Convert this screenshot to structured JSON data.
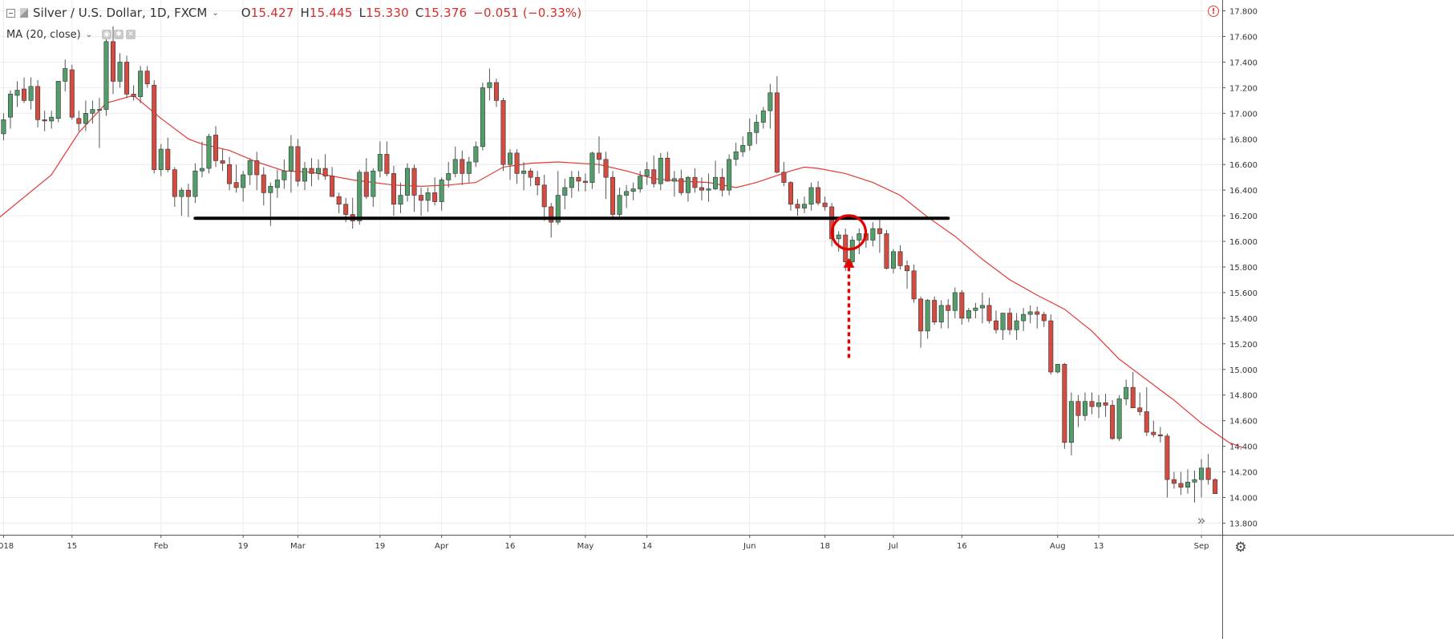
{
  "header": {
    "symbol": "Silver / U.S. Dollar, 1D, FXCM",
    "caret": "⌄",
    "ohlc": {
      "open_label": "O",
      "open": "15.427",
      "high_label": "H",
      "high": "15.445",
      "low_label": "L",
      "low": "15.330",
      "close_label": "C",
      "close": "15.376",
      "change": "−0.051 (−0.33%)"
    },
    "indicator": "MA (20, close)"
  },
  "icons": {
    "collapse": "collapse-square-icon",
    "symbol": "symbol-flag-icon",
    "eye": "eye-icon",
    "settings_small": "settings-icon",
    "close": "close-icon",
    "alert": "alert-circle-icon",
    "scroll": "scroll-right-icon",
    "gear": "gear-icon"
  },
  "alert_glyph": "!",
  "scroll_glyph": "»",
  "gear_glyph": "⚙",
  "colors": {
    "up": "#539d6b",
    "down": "#d24c41",
    "ma": "#e53935",
    "support": "#000000",
    "marker": "#e50000",
    "grid": "#ececec"
  },
  "chart_data": {
    "type": "candlestick",
    "instrument": "Silver / U.S. Dollar",
    "interval": "1D",
    "source": "FXCM",
    "ylim": [
      13.7,
      17.87
    ],
    "y_ticks": [
      "13.800",
      "14.000",
      "14.200",
      "14.400",
      "14.600",
      "14.800",
      "15.000",
      "15.200",
      "15.400",
      "15.600",
      "15.800",
      "16.000",
      "16.200",
      "16.400",
      "16.600",
      "16.800",
      "17.000",
      "17.200",
      "17.400",
      "17.600",
      "17.800"
    ],
    "x_ticks": [
      {
        "label": "2018",
        "bar": 1
      },
      {
        "label": "15",
        "bar": 11
      },
      {
        "label": "Feb",
        "bar": 24
      },
      {
        "label": "19",
        "bar": 36
      },
      {
        "label": "Mar",
        "bar": 44
      },
      {
        "label": "19",
        "bar": 56
      },
      {
        "label": "Apr",
        "bar": 65
      },
      {
        "label": "16",
        "bar": 75
      },
      {
        "label": "May",
        "bar": 86
      },
      {
        "label": "14",
        "bar": 95
      },
      {
        "label": "Jun",
        "bar": 110
      },
      {
        "label": "18",
        "bar": 121
      },
      {
        "label": "Jul",
        "bar": 131
      },
      {
        "label": "16",
        "bar": 141
      },
      {
        "label": "Aug",
        "bar": 155
      },
      {
        "label": "13",
        "bar": 161
      },
      {
        "label": "Sep",
        "bar": 176
      }
    ],
    "candles": [
      [
        16.72,
        16.85,
        16.63,
        16.82
      ],
      [
        16.84,
        17.0,
        16.79,
        16.95
      ],
      [
        16.97,
        17.18,
        16.88,
        17.15
      ],
      [
        17.14,
        17.25,
        17.05,
        17.18
      ],
      [
        17.19,
        17.28,
        17.08,
        17.1
      ],
      [
        17.1,
        17.28,
        17.03,
        17.21
      ],
      [
        17.21,
        17.26,
        16.89,
        16.95
      ],
      [
        16.95,
        17.02,
        16.86,
        16.94
      ],
      [
        16.94,
        17.02,
        16.88,
        16.97
      ],
      [
        16.96,
        17.25,
        16.93,
        17.25
      ],
      [
        17.25,
        17.42,
        17.17,
        17.35
      ],
      [
        17.34,
        17.38,
        16.95,
        16.97
      ],
      [
        16.96,
        17.02,
        16.86,
        16.92
      ],
      [
        16.92,
        17.1,
        16.86,
        17.0
      ],
      [
        17.0,
        17.1,
        16.92,
        17.03
      ],
      [
        17.03,
        17.12,
        16.73,
        17.03
      ],
      [
        17.03,
        17.62,
        16.98,
        17.56
      ],
      [
        17.56,
        17.68,
        17.15,
        17.25
      ],
      [
        17.25,
        17.47,
        17.2,
        17.4
      ],
      [
        17.4,
        17.45,
        17.12,
        17.15
      ],
      [
        17.15,
        17.22,
        17.1,
        17.13
      ],
      [
        17.13,
        17.37,
        17.08,
        17.33
      ],
      [
        17.33,
        17.37,
        17.2,
        17.23
      ],
      [
        17.22,
        17.26,
        16.53,
        16.56
      ],
      [
        16.56,
        16.76,
        16.51,
        16.72
      ],
      [
        16.72,
        16.81,
        16.54,
        16.56
      ],
      [
        16.56,
        16.58,
        16.27,
        16.35
      ],
      [
        16.35,
        16.42,
        16.2,
        16.4
      ],
      [
        16.4,
        16.45,
        16.19,
        16.35
      ],
      [
        16.35,
        16.61,
        16.3,
        16.55
      ],
      [
        16.55,
        16.78,
        16.5,
        16.57
      ],
      [
        16.57,
        16.84,
        16.53,
        16.82
      ],
      [
        16.83,
        16.9,
        16.58,
        16.63
      ],
      [
        16.63,
        16.72,
        16.55,
        16.61
      ],
      [
        16.6,
        16.66,
        16.4,
        16.45
      ],
      [
        16.46,
        16.6,
        16.38,
        16.42
      ],
      [
        16.42,
        16.55,
        16.31,
        16.52
      ],
      [
        16.52,
        16.65,
        16.44,
        16.63
      ],
      [
        16.63,
        16.7,
        16.4,
        16.52
      ],
      [
        16.52,
        16.58,
        16.28,
        16.38
      ],
      [
        16.38,
        16.46,
        16.12,
        16.43
      ],
      [
        16.42,
        16.56,
        16.34,
        16.48
      ],
      [
        16.48,
        16.64,
        16.41,
        16.55
      ],
      [
        16.55,
        16.83,
        16.38,
        16.74
      ],
      [
        16.74,
        16.8,
        16.43,
        16.47
      ],
      [
        16.47,
        16.62,
        16.4,
        16.57
      ],
      [
        16.57,
        16.65,
        16.43,
        16.53
      ],
      [
        16.53,
        16.64,
        16.48,
        16.57
      ],
      [
        16.57,
        16.68,
        16.48,
        16.51
      ],
      [
        16.51,
        16.58,
        16.39,
        16.35
      ],
      [
        16.35,
        16.38,
        16.22,
        16.29
      ],
      [
        16.29,
        16.34,
        16.15,
        16.21
      ],
      [
        16.21,
        16.34,
        16.1,
        16.16
      ],
      [
        16.16,
        16.56,
        16.13,
        16.54
      ],
      [
        16.54,
        16.65,
        16.33,
        16.35
      ],
      [
        16.35,
        16.57,
        16.27,
        16.55
      ],
      [
        16.55,
        16.78,
        16.5,
        16.68
      ],
      [
        16.68,
        16.78,
        16.51,
        16.53
      ],
      [
        16.53,
        16.59,
        16.2,
        16.29
      ],
      [
        16.29,
        16.46,
        16.22,
        16.36
      ],
      [
        16.36,
        16.61,
        16.31,
        16.57
      ],
      [
        16.57,
        16.6,
        16.23,
        16.36
      ],
      [
        16.36,
        16.42,
        16.2,
        16.32
      ],
      [
        16.32,
        16.42,
        16.23,
        16.38
      ],
      [
        16.38,
        16.5,
        16.28,
        16.31
      ],
      [
        16.31,
        16.5,
        16.24,
        16.48
      ],
      [
        16.48,
        16.62,
        16.42,
        16.53
      ],
      [
        16.53,
        16.74,
        16.5,
        16.64
      ],
      [
        16.64,
        16.71,
        16.44,
        16.53
      ],
      [
        16.53,
        16.66,
        16.46,
        16.62
      ],
      [
        16.62,
        16.78,
        16.58,
        16.74
      ],
      [
        16.74,
        17.24,
        16.71,
        17.2
      ],
      [
        17.2,
        17.35,
        17.1,
        17.24
      ],
      [
        17.24,
        17.27,
        17.05,
        17.1
      ],
      [
        17.1,
        17.12,
        16.55,
        16.6
      ],
      [
        16.6,
        16.72,
        16.48,
        16.69
      ],
      [
        16.69,
        16.72,
        16.45,
        16.53
      ],
      [
        16.53,
        16.62,
        16.4,
        16.55
      ],
      [
        16.55,
        16.57,
        16.43,
        16.5
      ],
      [
        16.5,
        16.55,
        16.36,
        16.44
      ],
      [
        16.44,
        16.52,
        16.16,
        16.27
      ],
      [
        16.27,
        16.3,
        16.03,
        16.15
      ],
      [
        16.15,
        16.55,
        16.13,
        16.36
      ],
      [
        16.36,
        16.49,
        16.25,
        16.42
      ],
      [
        16.42,
        16.55,
        16.34,
        16.5
      ],
      [
        16.5,
        16.55,
        16.39,
        16.47
      ],
      [
        16.47,
        16.53,
        16.39,
        16.46
      ],
      [
        16.46,
        16.7,
        16.41,
        16.69
      ],
      [
        16.69,
        16.82,
        16.53,
        16.64
      ],
      [
        16.64,
        16.7,
        16.33,
        16.5
      ],
      [
        16.5,
        16.55,
        16.18,
        16.21
      ],
      [
        16.21,
        16.42,
        16.18,
        16.36
      ],
      [
        16.36,
        16.44,
        16.26,
        16.39
      ],
      [
        16.39,
        16.46,
        16.32,
        16.41
      ],
      [
        16.41,
        16.55,
        16.38,
        16.51
      ],
      [
        16.51,
        16.62,
        16.44,
        16.56
      ],
      [
        16.56,
        16.67,
        16.42,
        16.45
      ],
      [
        16.45,
        16.69,
        16.4,
        16.65
      ],
      [
        16.65,
        16.7,
        16.48,
        16.47
      ],
      [
        16.47,
        16.55,
        16.35,
        16.49
      ],
      [
        16.49,
        16.56,
        16.36,
        16.38
      ],
      [
        16.38,
        16.51,
        16.31,
        16.5
      ],
      [
        16.5,
        16.57,
        16.38,
        16.42
      ],
      [
        16.42,
        16.5,
        16.32,
        16.4
      ],
      [
        16.4,
        16.53,
        16.31,
        16.41
      ],
      [
        16.41,
        16.63,
        16.4,
        16.5
      ],
      [
        16.5,
        16.57,
        16.35,
        16.4
      ],
      [
        16.4,
        16.68,
        16.36,
        16.64
      ],
      [
        16.64,
        16.77,
        16.59,
        16.7
      ],
      [
        16.7,
        16.82,
        16.66,
        16.75
      ],
      [
        16.75,
        16.96,
        16.71,
        16.85
      ],
      [
        16.85,
        16.99,
        16.76,
        16.93
      ],
      [
        16.93,
        17.05,
        16.88,
        17.02
      ],
      [
        17.02,
        17.23,
        16.88,
        17.16
      ],
      [
        17.16,
        17.29,
        16.53,
        16.54
      ],
      [
        16.54,
        16.62,
        16.43,
        16.46
      ],
      [
        16.46,
        16.47,
        16.24,
        16.29
      ],
      [
        16.29,
        16.33,
        16.2,
        16.26
      ],
      [
        16.26,
        16.35,
        16.22,
        16.29
      ],
      [
        16.29,
        16.46,
        16.24,
        16.42
      ],
      [
        16.42,
        16.47,
        16.28,
        16.3
      ],
      [
        16.3,
        16.35,
        16.24,
        16.27
      ],
      [
        16.27,
        16.3,
        15.96,
        16.02
      ],
      [
        16.02,
        16.08,
        15.92,
        16.05
      ],
      [
        16.05,
        16.1,
        15.77,
        15.84
      ],
      [
        15.84,
        16.04,
        15.82,
        16.01
      ],
      [
        16.01,
        16.1,
        15.9,
        16.06
      ],
      [
        16.06,
        16.1,
        15.95,
        16.01
      ],
      [
        16.01,
        16.15,
        15.96,
        16.1
      ],
      [
        16.1,
        16.18,
        15.91,
        16.06
      ],
      [
        16.06,
        16.09,
        15.78,
        15.79
      ],
      [
        15.79,
        15.94,
        15.75,
        15.92
      ],
      [
        15.92,
        15.97,
        15.78,
        15.81
      ],
      [
        15.81,
        15.85,
        15.63,
        15.77
      ],
      [
        15.77,
        15.82,
        15.52,
        15.55
      ],
      [
        15.55,
        15.57,
        15.17,
        15.3
      ],
      [
        15.3,
        15.55,
        15.24,
        15.54
      ],
      [
        15.54,
        15.57,
        15.35,
        15.37
      ],
      [
        15.37,
        15.54,
        15.32,
        15.5
      ],
      [
        15.5,
        15.55,
        15.32,
        15.46
      ],
      [
        15.46,
        15.64,
        15.4,
        15.6
      ],
      [
        15.6,
        15.62,
        15.35,
        15.4
      ],
      [
        15.4,
        15.48,
        15.37,
        15.46
      ],
      [
        15.46,
        15.52,
        15.4,
        15.48
      ],
      [
        15.48,
        15.6,
        15.36,
        15.5
      ],
      [
        15.5,
        15.56,
        15.36,
        15.38
      ],
      [
        15.38,
        15.46,
        15.28,
        15.31
      ],
      [
        15.31,
        15.43,
        15.23,
        15.44
      ],
      [
        15.44,
        15.48,
        15.27,
        15.31
      ],
      [
        15.31,
        15.44,
        15.23,
        15.38
      ],
      [
        15.38,
        15.48,
        15.3,
        15.43
      ],
      [
        15.43,
        15.5,
        15.36,
        15.45
      ],
      [
        15.45,
        15.49,
        15.32,
        15.43
      ],
      [
        15.43,
        15.45,
        15.33,
        15.38
      ],
      [
        15.38,
        15.43,
        14.96,
        14.98
      ],
      [
        14.98,
        15.04,
        14.97,
        15.04
      ],
      [
        15.04,
        15.05,
        14.38,
        14.43
      ],
      [
        14.43,
        14.82,
        14.33,
        14.75
      ],
      [
        14.75,
        14.8,
        14.55,
        14.64
      ],
      [
        14.64,
        14.82,
        14.6,
        14.75
      ],
      [
        14.75,
        14.82,
        14.65,
        14.71
      ],
      [
        14.71,
        14.8,
        14.62,
        14.74
      ],
      [
        14.74,
        14.81,
        14.63,
        14.72
      ],
      [
        14.72,
        14.76,
        14.45,
        14.46
      ],
      [
        14.46,
        14.8,
        14.44,
        14.77
      ],
      [
        14.77,
        14.92,
        14.72,
        14.86
      ],
      [
        14.86,
        14.98,
        14.72,
        14.7
      ],
      [
        14.7,
        14.82,
        14.64,
        14.67
      ],
      [
        14.67,
        14.86,
        14.48,
        14.51
      ],
      [
        14.51,
        14.6,
        14.47,
        14.49
      ],
      [
        14.49,
        14.55,
        14.43,
        14.48
      ],
      [
        14.48,
        14.5,
        14.0,
        14.14
      ],
      [
        14.14,
        14.2,
        14.07,
        14.11
      ],
      [
        14.11,
        14.2,
        14.02,
        14.08
      ],
      [
        14.08,
        14.22,
        14.03,
        14.12
      ],
      [
        14.12,
        14.21,
        13.96,
        14.14
      ],
      [
        14.14,
        14.3,
        14.0,
        14.23
      ],
      [
        14.23,
        14.34,
        14.1,
        14.14
      ],
      [
        14.14,
        14.15,
        14.03,
        14.03
      ]
    ],
    "ma": [
      [
        0,
        16.17
      ],
      [
        8,
        16.52
      ],
      [
        12,
        16.85
      ],
      [
        16,
        17.08
      ],
      [
        20,
        17.14
      ],
      [
        24,
        16.96
      ],
      [
        28,
        16.8
      ],
      [
        30,
        16.76
      ],
      [
        34,
        16.71
      ],
      [
        38,
        16.62
      ],
      [
        42,
        16.55
      ],
      [
        46,
        16.54
      ],
      [
        52,
        16.48
      ],
      [
        58,
        16.44
      ],
      [
        62,
        16.43
      ],
      [
        66,
        16.44
      ],
      [
        70,
        16.46
      ],
      [
        74,
        16.58
      ],
      [
        78,
        16.61
      ],
      [
        82,
        16.62
      ],
      [
        88,
        16.6
      ],
      [
        92,
        16.55
      ],
      [
        96,
        16.49
      ],
      [
        100,
        16.47
      ],
      [
        104,
        16.46
      ],
      [
        108,
        16.42
      ],
      [
        111,
        16.46
      ],
      [
        116,
        16.55
      ],
      [
        118,
        16.58
      ],
      [
        120,
        16.57
      ],
      [
        124,
        16.53
      ],
      [
        128,
        16.46
      ],
      [
        132,
        16.36
      ],
      [
        136,
        16.19
      ],
      [
        140,
        16.04
      ],
      [
        144,
        15.86
      ],
      [
        148,
        15.7
      ],
      [
        152,
        15.58
      ],
      [
        156,
        15.47
      ],
      [
        160,
        15.3
      ],
      [
        164,
        15.08
      ],
      [
        168,
        14.92
      ],
      [
        172,
        14.76
      ],
      [
        176,
        14.58
      ],
      [
        180,
        14.43
      ],
      [
        182,
        14.39
      ]
    ],
    "annotations": {
      "support_level": 16.18,
      "support_from_bar": 29,
      "support_to_bar": 139,
      "breakout_circle": {
        "bar": 124.5,
        "price": 16.07
      },
      "arrow_bar": 124.5,
      "arrow_from_price": 15.09,
      "arrow_to_price": 15.87
    }
  }
}
